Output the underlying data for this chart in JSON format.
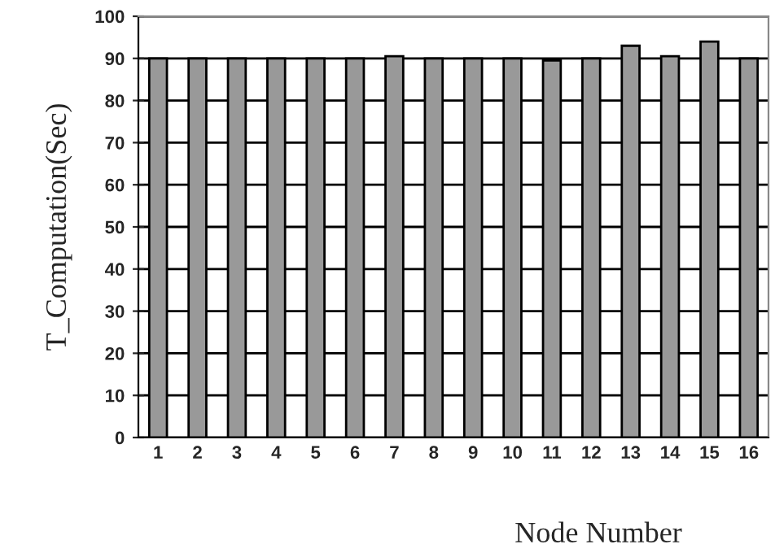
{
  "chart_data": {
    "type": "bar",
    "xlabel": "Node Number",
    "ylabel": "T_Computation(Sec)",
    "categories": [
      "1",
      "2",
      "3",
      "4",
      "5",
      "6",
      "7",
      "8",
      "9",
      "10",
      "11",
      "12",
      "13",
      "14",
      "15",
      "16"
    ],
    "series": [
      {
        "color": "#999999",
        "values": [
          90,
          90,
          90,
          90,
          90,
          90,
          90.5,
          90,
          90,
          90,
          89.5,
          90,
          93,
          90.5,
          94,
          90
        ]
      }
    ],
    "ylim": [
      0,
      100
    ],
    "yticks": [
      0,
      10,
      20,
      30,
      40,
      50,
      60,
      70,
      80,
      90,
      100
    ],
    "grid": "y"
  }
}
